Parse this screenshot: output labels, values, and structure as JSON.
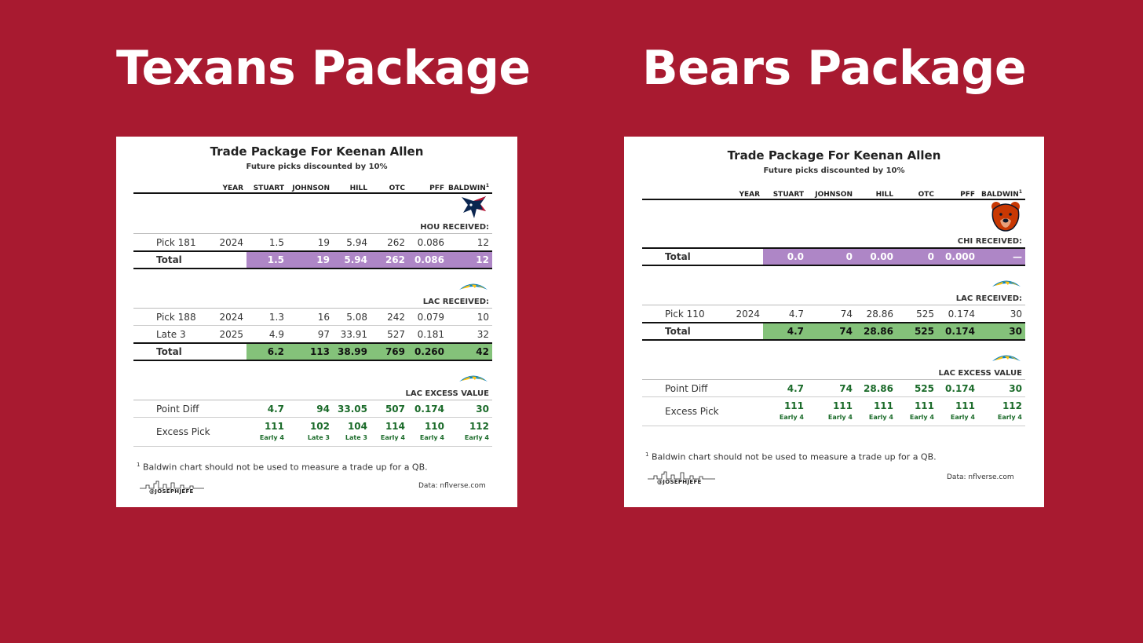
{
  "headlines": {
    "left": "Texans Package",
    "right": "Bears Package"
  },
  "colors": {
    "background": "#a81a30",
    "total_purple": "#ae86c6",
    "total_green": "#84c27a",
    "excess_text": "#1b6b2a"
  },
  "common": {
    "title": "Trade Package For Keenan Allen",
    "subtitle": "Future picks discounted by 10%",
    "columns": [
      "YEAR",
      "STUART",
      "JOHNSON",
      "HILL",
      "OTC",
      "PFF",
      "BALDWIN"
    ],
    "baldwin_sup": "1",
    "footnote_sup": "1",
    "footnote": "Baldwin chart should not be used to measure a trade up for a QB.",
    "source": "Data: nflverse.com",
    "signature": "@JOSEPHJEFE"
  },
  "left": {
    "sections": {
      "hou": {
        "logo": "texans-logo",
        "label": "HOU RECEIVED:",
        "rows": [
          {
            "label": "Pick 181",
            "year": "2024",
            "stuart": "1.5",
            "johnson": "19",
            "hill": "5.94",
            "otc": "262",
            "pff": "0.086",
            "baldwin": "12"
          }
        ],
        "total": {
          "label": "Total",
          "stuart": "1.5",
          "johnson": "19",
          "hill": "5.94",
          "otc": "262",
          "pff": "0.086",
          "baldwin": "12"
        }
      },
      "lac": {
        "logo": "chargers-logo",
        "label": "LAC RECEIVED:",
        "rows": [
          {
            "label": "Pick 188",
            "year": "2024",
            "stuart": "1.3",
            "johnson": "16",
            "hill": "5.08",
            "otc": "242",
            "pff": "0.079",
            "baldwin": "10"
          },
          {
            "label": "Late 3",
            "year": "2025",
            "stuart": "4.9",
            "johnson": "97",
            "hill": "33.91",
            "otc": "527",
            "pff": "0.181",
            "baldwin": "32"
          }
        ],
        "total": {
          "label": "Total",
          "stuart": "6.2",
          "johnson": "113",
          "hill": "38.99",
          "otc": "769",
          "pff": "0.260",
          "baldwin": "42"
        }
      },
      "excess": {
        "logo": "chargers-logo",
        "label": "LAC EXCESS VALUE",
        "point_diff": {
          "label": "Point Diff",
          "stuart": "4.7",
          "johnson": "94",
          "hill": "33.05",
          "otc": "507",
          "pff": "0.174",
          "baldwin": "30"
        },
        "excess_pick": {
          "label": "Excess Pick",
          "stuart": {
            "pick": "111",
            "tier": "Early 4"
          },
          "johnson": {
            "pick": "102",
            "tier": "Late 3"
          },
          "hill": {
            "pick": "104",
            "tier": "Late 3"
          },
          "otc": {
            "pick": "114",
            "tier": "Early 4"
          },
          "pff": {
            "pick": "110",
            "tier": "Early 4"
          },
          "baldwin": {
            "pick": "112",
            "tier": "Early 4"
          }
        }
      }
    }
  },
  "right": {
    "sections": {
      "chi": {
        "logo": "bears-logo",
        "label": "CHI RECEIVED:",
        "total": {
          "label": "Total",
          "stuart": "0.0",
          "johnson": "0",
          "hill": "0.00",
          "otc": "0",
          "pff": "0.000",
          "baldwin": "—"
        }
      },
      "lac": {
        "logo": "chargers-logo",
        "label": "LAC RECEIVED:",
        "rows": [
          {
            "label": "Pick 110",
            "year": "2024",
            "stuart": "4.7",
            "johnson": "74",
            "hill": "28.86",
            "otc": "525",
            "pff": "0.174",
            "baldwin": "30"
          }
        ],
        "total": {
          "label": "Total",
          "stuart": "4.7",
          "johnson": "74",
          "hill": "28.86",
          "otc": "525",
          "pff": "0.174",
          "baldwin": "30"
        }
      },
      "excess": {
        "logo": "chargers-logo",
        "label": "LAC EXCESS VALUE",
        "point_diff": {
          "label": "Point Diff",
          "stuart": "4.7",
          "johnson": "74",
          "hill": "28.86",
          "otc": "525",
          "pff": "0.174",
          "baldwin": "30"
        },
        "excess_pick": {
          "label": "Excess Pick",
          "stuart": {
            "pick": "111",
            "tier": "Early 4"
          },
          "johnson": {
            "pick": "111",
            "tier": "Early 4"
          },
          "hill": {
            "pick": "111",
            "tier": "Early 4"
          },
          "otc": {
            "pick": "111",
            "tier": "Early 4"
          },
          "pff": {
            "pick": "111",
            "tier": "Early 4"
          },
          "baldwin": {
            "pick": "112",
            "tier": "Early 4"
          }
        }
      }
    }
  }
}
